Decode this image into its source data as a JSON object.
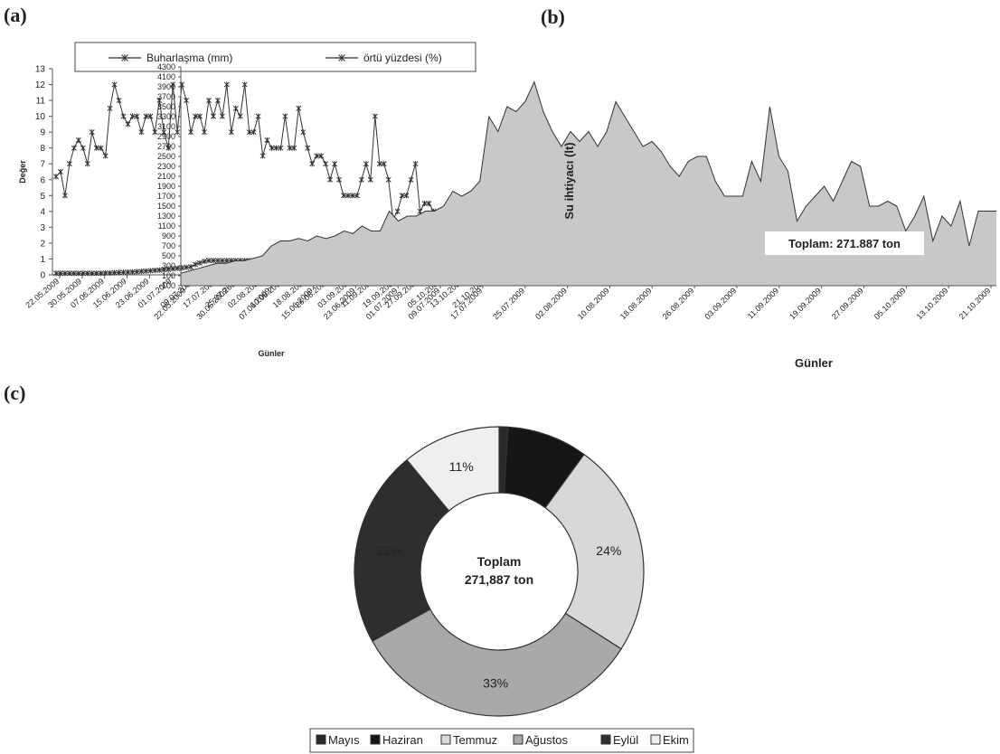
{
  "panels": {
    "a": "(a)",
    "b": "(b)",
    "c": "(c)"
  },
  "chart_data": [
    {
      "panel": "(a)",
      "type": "line",
      "ylabel": "Değer",
      "xlabel": "Günler",
      "ylim": [
        0,
        13
      ],
      "yticks": [
        0,
        1,
        2,
        3,
        4,
        5,
        6,
        7,
        8,
        9,
        10,
        11,
        12,
        13
      ],
      "xtick_labels": [
        "22.05.2009",
        "30.05.2009",
        "07.06.2009",
        "15.06.2009",
        "23.06.2009",
        "01.07.2009",
        "09.07.2009",
        "17.07.2009",
        "25.07.2009",
        "02.08.2009",
        "10.08.2009",
        "18.08.2009",
        "26.08.2009",
        "03.09.2009",
        "11.09.2009",
        "19.09.2009",
        "27.09.2009",
        "05.10.2009",
        "13.10.2009",
        "21.10.2009"
      ],
      "legend": "top",
      "series": [
        {
          "name": "Buharlaşma (mm)",
          "values": [
            6.2,
            6.5,
            5,
            7,
            8,
            8.5,
            8,
            7,
            9,
            8,
            8,
            7.5,
            10.5,
            12,
            11,
            10,
            9.5,
            10,
            10,
            9,
            10,
            10,
            9,
            11,
            9,
            8,
            12,
            9,
            12,
            11,
            9,
            10,
            10,
            9,
            11,
            10,
            11,
            10,
            12,
            9,
            10.5,
            10,
            12,
            9,
            9,
            10,
            7.5,
            8.5,
            8,
            8,
            8,
            10,
            8,
            8,
            10.5,
            9,
            8,
            7,
            7.5,
            7.5,
            7,
            6,
            7,
            6,
            5,
            5,
            5,
            5,
            6,
            7,
            6,
            10,
            7,
            7,
            6,
            3.5,
            4,
            5,
            5,
            6,
            7,
            4,
            4.5,
            4.5,
            4,
            3,
            2.5,
            4,
            4,
            4,
            3.5,
            4,
            2,
            4,
            4,
            4,
            2,
            3.5
          ]
        },
        {
          "name": "örtü yüzdesi (%)",
          "values": [
            0.1,
            0.1,
            0.1,
            0.1,
            0.1,
            0.1,
            0.1,
            0.1,
            0.1,
            0.1,
            0.1,
            0.12,
            0.12,
            0.14,
            0.15,
            0.16,
            0.17,
            0.18,
            0.2,
            0.22,
            0.24,
            0.26,
            0.28,
            0.3,
            0.32,
            0.35,
            0.38,
            0.41,
            0.44,
            0.47,
            0.5,
            0.65,
            0.75,
            0.85,
            0.9,
            0.9,
            0.9,
            0.9,
            0.9,
            0.9,
            0.9,
            0.9,
            0.9,
            0.9,
            0.9,
            0.9,
            0.9,
            0.9,
            0.9,
            0.9,
            0.9,
            0.9,
            0.9,
            0.9,
            0.9,
            0.9,
            0.9,
            0.9,
            0.9,
            0.9,
            0.9,
            0.9,
            0.9,
            0.9,
            0.9,
            0.9,
            0.9,
            0.9,
            0.9,
            0.9,
            0.9,
            0.9,
            0.9,
            0.9,
            0.9,
            0.9,
            0.9,
            0.9,
            0.9,
            0.9,
            0.9,
            0.9,
            0.9,
            0.9,
            0.9,
            0.9,
            0.9,
            0.9,
            0.9,
            0.9,
            0.9,
            0.9,
            0.9,
            0.9,
            0.9,
            0.9
          ]
        }
      ]
    },
    {
      "panel": "(b)",
      "type": "area",
      "ylabel": "Su ihtiyacı (lt)",
      "xlabel": "Günler",
      "ylim": [
        -100,
        4300
      ],
      "yticks": [
        -100,
        100,
        300,
        500,
        700,
        900,
        1100,
        1300,
        1500,
        1700,
        1900,
        2100,
        2300,
        2500,
        2700,
        2900,
        3100,
        3300,
        3500,
        3700,
        3900,
        4100,
        4300
      ],
      "xtick_labels": [
        "22.05.2009",
        "30.05.2009",
        "07.06.2009",
        "15.06.2009",
        "23.06.2009",
        "01.07.2009",
        "09.07.2009",
        "17.07.2009",
        "25.07.2009",
        "02.08.2009",
        "10.08.2009",
        "18.08.2009",
        "26.08.2009",
        "03.09.2009",
        "11.09.2009",
        "19.09.2009",
        "27.09.2009",
        "05.10.2009",
        "13.10.2009",
        "21.10.2009"
      ],
      "annotation": "Toplam: 271.887 ton",
      "values": [
        150,
        200,
        250,
        300,
        350,
        350,
        400,
        400,
        450,
        500,
        700,
        800,
        800,
        850,
        800,
        900,
        850,
        900,
        1000,
        950,
        1100,
        1000,
        1000,
        1400,
        1200,
        1300,
        1300,
        1400,
        1400,
        1500,
        1800,
        1700,
        1800,
        2000,
        3300,
        3000,
        3500,
        3400,
        3600,
        4000,
        3400,
        3000,
        2700,
        3000,
        2800,
        3000,
        2700,
        3000,
        3600,
        3300,
        3000,
        2700,
        2800,
        2600,
        2300,
        2100,
        2400,
        2500,
        2500,
        2000,
        1700,
        1700,
        1700,
        2400,
        2000,
        3500,
        2500,
        2200,
        1200,
        1500,
        1700,
        1900,
        1600,
        2000,
        2400,
        2300,
        1500,
        1500,
        1600,
        1500,
        1000,
        1300,
        1700,
        800,
        1300,
        1100,
        1600,
        700,
        1400,
        1400,
        1400
      ]
    },
    {
      "panel": "(c)",
      "type": "pie",
      "center_title": "Toplam",
      "center_value": "271,887 ton",
      "legend": "bottom",
      "categories": [
        "Mayıs",
        "Haziran",
        "Temmuz",
        "Ağustos",
        "Eylül",
        "Ekim"
      ],
      "values": [
        1,
        9,
        24,
        33,
        22,
        11
      ],
      "labels": [
        "",
        "",
        "24%",
        "33%",
        "22%",
        "11%"
      ],
      "colors": [
        "#2a2a2a",
        "#161616",
        "#d8d8d8",
        "#a9a9a9",
        "#2e2e2e",
        "#efefef"
      ]
    }
  ]
}
